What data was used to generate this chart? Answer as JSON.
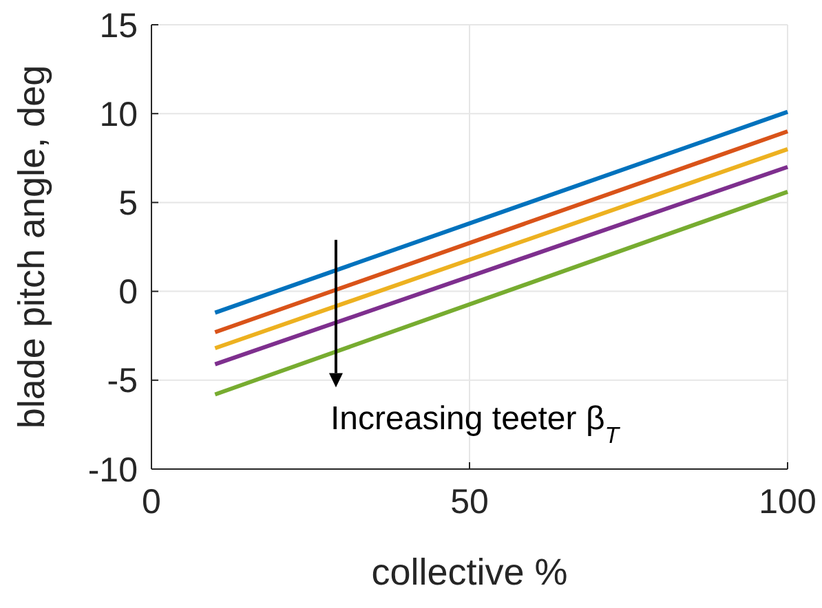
{
  "chart_data": {
    "type": "line",
    "xlabel": "collective %",
    "ylabel": "blade pitch angle, deg",
    "xlim": [
      0,
      100
    ],
    "xticks": [
      0,
      50,
      100
    ],
    "ylim": [
      -10,
      15
    ],
    "yticks": [
      -10,
      -5,
      0,
      5,
      10,
      15
    ],
    "grid": true,
    "x": [
      10,
      100
    ],
    "line_style": "solid",
    "marker": "none",
    "series": [
      {
        "color": "#0072bd",
        "values": [
          -1.2,
          10.1
        ]
      },
      {
        "color": "#d95319",
        "values": [
          -2.3,
          9.0
        ]
      },
      {
        "color": "#edb120",
        "values": [
          -3.2,
          8.0
        ]
      },
      {
        "color": "#7e2f8e",
        "values": [
          -4.1,
          7.0
        ]
      },
      {
        "color": "#77ac30",
        "values": [
          -5.8,
          5.6
        ]
      }
    ],
    "annotations": [
      "Increasing teeter β$_{T}$"
    ]
  }
}
